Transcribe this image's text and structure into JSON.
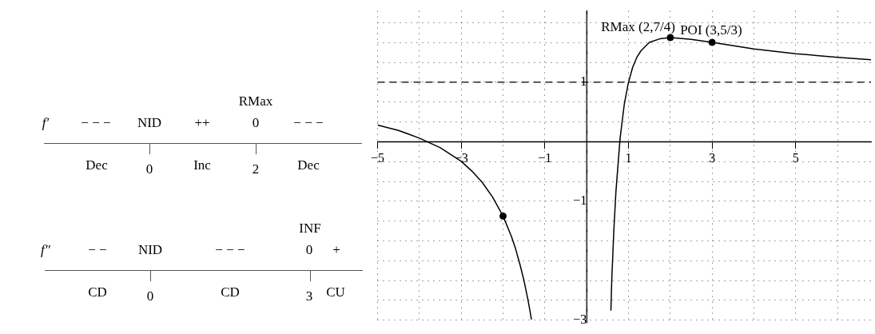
{
  "chart_data": {
    "type": "line",
    "series": [
      {
        "color": "#000000",
        "marker": "none",
        "x": [
          -5,
          -4.5,
          -4,
          -3.5,
          -3,
          -2.75,
          -2.5,
          -2.25,
          -2,
          -1.8,
          -1.7,
          -1.6,
          -1.5,
          -1.4,
          -1.32,
          0,
          0.58,
          0.6,
          0.65,
          0.7,
          0.8,
          0.9,
          1,
          1.1,
          1.2,
          1.3,
          1.5,
          1.75,
          2,
          2.5,
          3,
          4,
          5,
          6,
          6.8
        ],
        "values": [
          0.28,
          0.19,
          0.06,
          -0.1,
          -0.33,
          -0.49,
          -0.68,
          -0.93,
          -1.25,
          -1.59,
          -1.8,
          -2.05,
          -2.33,
          -2.67,
          -2.99,
          null,
          -2.84,
          -2.33,
          -1.49,
          -0.84,
          0.06,
          0.63,
          1,
          1.25,
          1.42,
          1.53,
          1.67,
          1.73,
          1.75,
          1.72,
          1.67,
          1.56,
          1.48,
          1.42,
          1.38
        ]
      },
      {
        "type": "scatter",
        "color": "#000000",
        "marker": "circle",
        "x": [
          -2,
          2,
          3
        ],
        "values": [
          -1.25,
          1.75,
          1.67
        ]
      }
    ],
    "xlim": [
      -5,
      6.8
    ],
    "xticks": [
      -5,
      {
        "value": -4,
        "label": null
      },
      -3,
      {
        "value": -2,
        "label": null
      },
      -1,
      {
        "value": 0,
        "label": null
      },
      1,
      {
        "value": 2,
        "label": null
      },
      3,
      {
        "value": 4,
        "label": null
      },
      5,
      {
        "value": 6,
        "label": null
      }
    ],
    "ylim": [
      -3.05,
      2.2
    ],
    "yticks": [
      -3,
      {
        "value": -2.667,
        "label": null
      },
      {
        "value": -2.333,
        "label": null
      },
      {
        "value": -2,
        "label": null
      },
      {
        "value": -1.667,
        "label": null
      },
      {
        "value": -1.333,
        "label": null
      },
      -1,
      {
        "value": -0.667,
        "label": null
      },
      {
        "value": -0.333,
        "label": null
      },
      {
        "value": 0,
        "label": null
      },
      {
        "value": 0.333,
        "label": null
      },
      {
        "value": 0.667,
        "label": null
      },
      1,
      {
        "value": 1.333,
        "label": null
      },
      {
        "value": 1.667,
        "label": null
      },
      {
        "value": 2,
        "label": null
      }
    ],
    "ref_lines": [
      {
        "axis": "y",
        "value": 1,
        "color": "#000000",
        "line_style": "dashed"
      }
    ],
    "grid": true,
    "legend": false,
    "annotations": [
      {
        "text": "RMax (2,7/4)",
        "x": 2,
        "y": 1.75
      },
      {
        "text": "POI (3,5/3)",
        "x": 3,
        "y": 1.667
      },
      "f′",
      "− − −",
      "NID",
      "++",
      "RMax",
      "0",
      "− − −",
      "Dec",
      "0",
      "Inc",
      "2",
      "Dec",
      "f″",
      "− −",
      "NID",
      "− − −",
      "INF",
      "0",
      "+",
      "CD",
      "0",
      "CD",
      "3",
      "CU"
    ]
  }
}
